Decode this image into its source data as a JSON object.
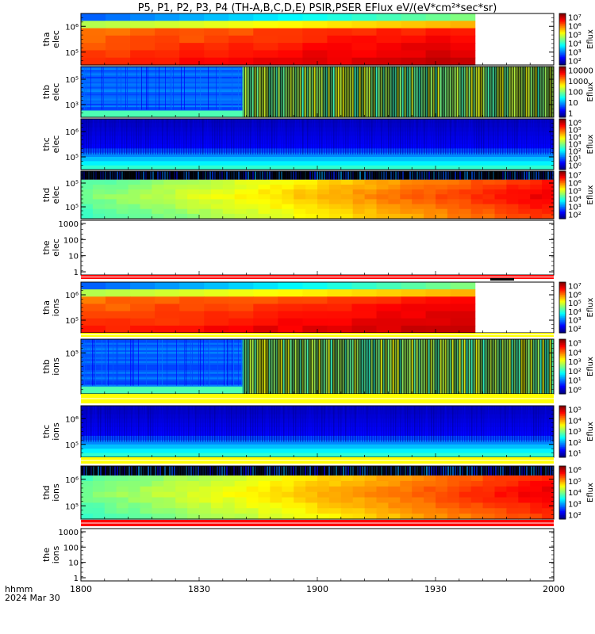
{
  "title": "P5, P1, P2, P3, P4 (TH-A,B,C,D,E) PSIR,PSER EFlux eV/(eV*cm²*sec*sr)",
  "footer": {
    "time_label": "hhmm",
    "date_label": "2024 Mar 30"
  },
  "x_axis": {
    "ticks": [
      "1800",
      "1830",
      "1900",
      "1930",
      "2000"
    ],
    "range_minutes": [
      0,
      120
    ]
  },
  "colorbar_unit": "Eflux",
  "chart_data": {
    "type": "heatmap",
    "x": [
      "1800",
      "1830",
      "1900",
      "1930",
      "2000"
    ],
    "panels": [
      {
        "id": "tha-elec",
        "probe": "tha",
        "species": "elec",
        "yticks": [
          "10⁶",
          "10⁵"
        ],
        "colorbar": [
          "10⁷",
          "10⁶",
          "10⁵",
          "10⁴",
          "10³",
          "10²"
        ],
        "colorbar_unit": "Eflux",
        "data_end_minute": 100,
        "pattern": "smooth"
      },
      {
        "id": "thb-elec",
        "probe": "thb",
        "species": "elec",
        "yticks": [
          "10⁵",
          "10³"
        ],
        "colorbar": [
          "10000",
          "1000",
          "100",
          "10",
          "1"
        ],
        "colorbar_unit": "Eflux",
        "pattern": "noisy-split",
        "split_minute": 41
      },
      {
        "id": "thc-elec",
        "probe": "thc",
        "species": "elec",
        "yticks": [
          "10⁶",
          "10⁵"
        ],
        "colorbar": [
          "10⁶",
          "10⁵",
          "10⁴",
          "10³",
          "10²",
          "10¹",
          "10⁰"
        ],
        "colorbar_unit": "Eflux",
        "pattern": "noisy-dark"
      },
      {
        "id": "thd-elec",
        "probe": "thd",
        "species": "elec",
        "yticks": [
          "10⁵",
          "10⁵"
        ],
        "colorbar": [
          "10⁷",
          "10⁶",
          "10⁵",
          "10⁴",
          "10³",
          "10²"
        ],
        "colorbar_unit": "Eflux",
        "pattern": "gradient"
      },
      {
        "id": "the-elec",
        "probe": "the",
        "species": "elec",
        "yticks": [
          "1000",
          "100",
          "10",
          "1"
        ],
        "pattern": "empty"
      },
      {
        "id": "tha-ions",
        "probe": "tha",
        "species": "ions",
        "yticks": [
          "10⁶",
          "10⁵"
        ],
        "colorbar": [
          "10⁷",
          "10⁶",
          "10⁵",
          "10⁴",
          "10³",
          "10²"
        ],
        "colorbar_unit": "Eflux",
        "data_end_minute": 100,
        "pattern": "smooth"
      },
      {
        "id": "thb-ions",
        "probe": "thb",
        "species": "ions",
        "yticks": [
          "10⁵"
        ],
        "colorbar": [
          "10⁵",
          "10⁴",
          "10³",
          "10²",
          "10¹",
          "10⁰"
        ],
        "colorbar_unit": "Eflux",
        "pattern": "noisy-split",
        "split_minute": 41
      },
      {
        "id": "thc-ions",
        "probe": "thc",
        "species": "ions",
        "yticks": [
          "10⁶",
          "10⁵"
        ],
        "colorbar": [
          "10⁵",
          "10⁴",
          "10³",
          "10²",
          "10¹"
        ],
        "colorbar_unit": "Eflux",
        "pattern": "noisy-dark"
      },
      {
        "id": "thd-ions",
        "probe": "thd",
        "species": "ions",
        "yticks": [
          "10⁶",
          "10⁵"
        ],
        "colorbar": [
          "10⁶",
          "10⁵",
          "10⁴",
          "10³",
          "10²"
        ],
        "colorbar_unit": "Eflux",
        "pattern": "gradient"
      },
      {
        "id": "the-ions",
        "probe": "the",
        "species": "ions",
        "yticks": [
          "1000",
          "100",
          "10",
          "1"
        ],
        "pattern": "empty"
      }
    ]
  }
}
